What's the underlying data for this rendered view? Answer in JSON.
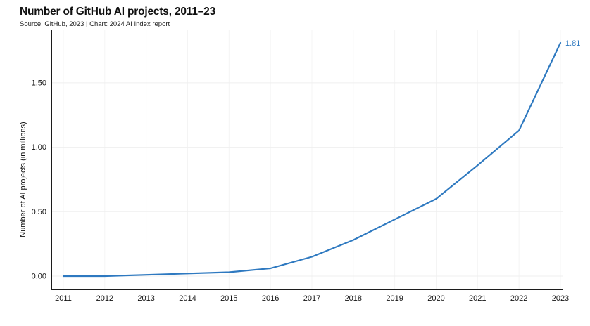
{
  "header": {
    "title": "Number of GitHub AI projects, 2011–23",
    "subtitle": "Source: GitHub, 2023 | Chart: 2024 AI Index report"
  },
  "chart_data": {
    "type": "line",
    "title": "Number of GitHub AI projects, 2011–23",
    "subtitle": "Source: GitHub, 2023 | Chart: 2024 AI Index report",
    "xlabel": "",
    "ylabel": "Number of AI projects (in millions)",
    "x": [
      2011,
      2012,
      2013,
      2014,
      2015,
      2016,
      2017,
      2018,
      2019,
      2020,
      2021,
      2022,
      2023
    ],
    "series": [
      {
        "name": "Number of AI projects (in millions)",
        "values": [
          0.0,
          0.0,
          0.01,
          0.02,
          0.03,
          0.06,
          0.15,
          0.28,
          0.44,
          0.6,
          0.86,
          1.13,
          1.81
        ]
      }
    ],
    "end_label": "1.81",
    "yticks": [
      0.0,
      0.5,
      1.0,
      1.5
    ],
    "ytick_labels": [
      "0.00",
      "0.50",
      "1.00",
      "1.50"
    ],
    "xtick_labels": [
      "2011",
      "2012",
      "2013",
      "2014",
      "2015",
      "2016",
      "2017",
      "2018",
      "2019",
      "2020",
      "2021",
      "2022",
      "2023"
    ],
    "ylim": [
      0,
      1.91
    ],
    "grid": true,
    "legend": "none",
    "colors": {
      "line": "#2e79c0",
      "end_label": "#2e79c0",
      "axis": "#1c1c1c",
      "grid_horizontal": "#efefef",
      "grid_vertical": "#f4f4f4",
      "text": "#111111"
    }
  }
}
